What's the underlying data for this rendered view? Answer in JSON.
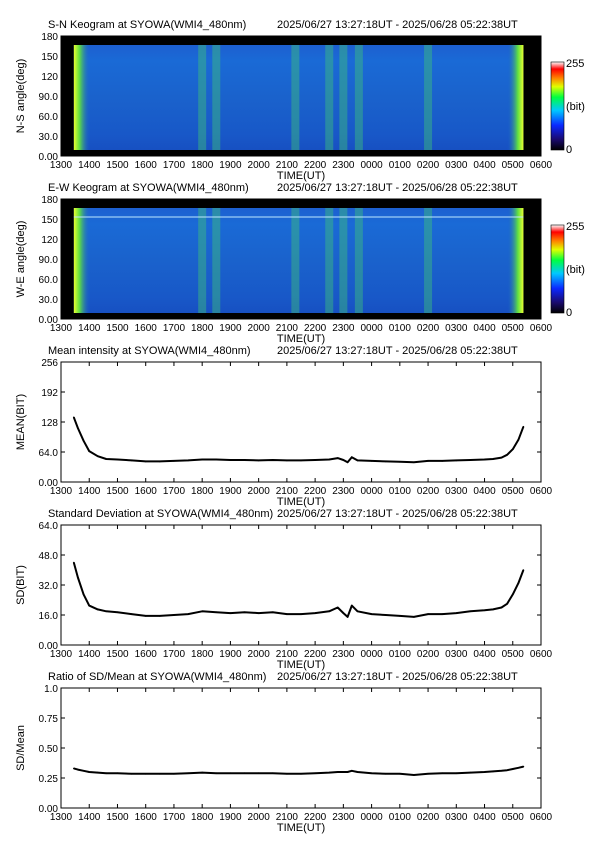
{
  "chart_data": [
    {
      "type": "heatmap",
      "title": "S-N Keogram at SYOWA(WMI4_480nm)",
      "time_range": "2025/06/27 13:27:18UT - 2025/06/28 05:22:38UT",
      "xlabel": "TIME(UT)",
      "ylabel": "N-S angle(deg)",
      "x_ticks": [
        "1300",
        "1400",
        "1500",
        "1600",
        "1700",
        "1800",
        "1900",
        "2000",
        "2100",
        "2200",
        "2300",
        "0000",
        "0100",
        "0200",
        "0300",
        "0400",
        "0500",
        "0600"
      ],
      "y_ticks": [
        "0.00",
        "30.0",
        "60.0",
        "90.0",
        "120",
        "150",
        "180"
      ],
      "ylim": [
        0,
        180
      ],
      "colorbar": {
        "max_label": "255",
        "unit_label": "(bit)",
        "min_label": "0",
        "range": [
          0,
          255
        ]
      },
      "bright_bands_ut": [
        "1800",
        "1830",
        "2120",
        "2230",
        "2300",
        "2330",
        "0200"
      ],
      "colors": {
        "low": "#0a1fa0",
        "mid": "#1f7fd8",
        "mid2": "#2fb7a0",
        "high": "#7fdc3c"
      }
    },
    {
      "type": "heatmap",
      "title": "E-W Keogram at SYOWA(WMI4_480nm)",
      "time_range": "2025/06/27 13:27:18UT - 2025/06/28 05:22:38UT",
      "xlabel": "TIME(UT)",
      "ylabel": "W-E angle(deg)",
      "x_ticks": [
        "1300",
        "1400",
        "1500",
        "1600",
        "1700",
        "1800",
        "1900",
        "2000",
        "2100",
        "2200",
        "2300",
        "0000",
        "0100",
        "0200",
        "0300",
        "0400",
        "0500",
        "0600"
      ],
      "y_ticks": [
        "0.00",
        "30.0",
        "60.0",
        "90.0",
        "120",
        "150",
        "180"
      ],
      "ylim": [
        0,
        180
      ],
      "colorbar": {
        "max_label": "255",
        "unit_label": "(bit)",
        "min_label": "0",
        "range": [
          0,
          255
        ]
      },
      "bright_bands_ut": [
        "1800",
        "1830",
        "2120",
        "2230",
        "2300",
        "2330",
        "0200"
      ]
    },
    {
      "type": "line",
      "title": "Mean intensity at SYOWA(WMI4_480nm)",
      "time_range": "2025/06/27 13:27:18UT - 2025/06/28 05:22:38UT",
      "xlabel": "TIME(UT)",
      "ylabel": "MEAN(BIT)",
      "x_ticks": [
        "1300",
        "1400",
        "1500",
        "1600",
        "1700",
        "1800",
        "1900",
        "2000",
        "2100",
        "2200",
        "2300",
        "0000",
        "0100",
        "0200",
        "0300",
        "0400",
        "0500",
        "0600"
      ],
      "y_ticks": [
        "0.00",
        "64.0",
        "128",
        "192",
        "256"
      ],
      "ylim": [
        0,
        256
      ],
      "x_hours": [
        13.455,
        13.6,
        13.8,
        14.0,
        14.3,
        14.6,
        15.0,
        15.5,
        16.0,
        16.5,
        17.0,
        17.5,
        18.0,
        18.5,
        19.0,
        19.5,
        20.0,
        20.5,
        21.0,
        21.5,
        22.0,
        22.5,
        22.8,
        23.0,
        23.15,
        23.3,
        23.5,
        24.0,
        24.5,
        25.0,
        25.5,
        26.0,
        26.5,
        27.0,
        27.5,
        28.0,
        28.3,
        28.6,
        28.8,
        29.0,
        29.2,
        29.378
      ],
      "values": [
        138,
        115,
        88,
        66,
        55,
        49,
        48,
        46,
        44,
        44,
        45,
        46,
        48,
        48,
        47,
        47,
        46,
        47,
        46,
        46,
        47,
        48,
        51,
        47,
        42,
        53,
        46,
        45,
        44,
        43,
        42,
        45,
        45,
        46,
        47,
        48,
        49,
        52,
        58,
        70,
        90,
        118
      ]
    },
    {
      "type": "line",
      "title": "Standard Deviation at SYOWA(WMI4_480nm)",
      "time_range": "2025/06/27 13:27:18UT - 2025/06/28 05:22:38UT",
      "xlabel": "TIME(UT)",
      "ylabel": "SD(BIT)",
      "x_ticks": [
        "1300",
        "1400",
        "1500",
        "1600",
        "1700",
        "1800",
        "1900",
        "2000",
        "2100",
        "2200",
        "2300",
        "0000",
        "0100",
        "0200",
        "0300",
        "0400",
        "0500",
        "0600"
      ],
      "y_ticks": [
        "0.00",
        "16.0",
        "32.0",
        "48.0",
        "64.0"
      ],
      "ylim": [
        0,
        64
      ],
      "x_hours": [
        13.455,
        13.6,
        13.8,
        14.0,
        14.3,
        14.6,
        15.0,
        15.5,
        16.0,
        16.5,
        17.0,
        17.5,
        18.0,
        18.5,
        19.0,
        19.5,
        20.0,
        20.5,
        21.0,
        21.5,
        22.0,
        22.5,
        22.8,
        23.0,
        23.15,
        23.3,
        23.5,
        24.0,
        24.5,
        25.0,
        25.5,
        26.0,
        26.5,
        27.0,
        27.5,
        28.0,
        28.3,
        28.6,
        28.8,
        29.0,
        29.2,
        29.378
      ],
      "values": [
        44,
        36,
        27,
        21,
        19,
        18,
        17.5,
        16.5,
        15.5,
        15.5,
        16,
        16.5,
        18,
        17.5,
        17,
        17.5,
        17,
        17.5,
        16.5,
        16.5,
        17,
        18,
        20,
        17,
        15,
        21,
        18,
        16.5,
        16,
        15.5,
        15,
        16.5,
        16.5,
        17,
        18,
        18.5,
        19,
        20,
        22,
        27,
        33,
        40
      ]
    },
    {
      "type": "line",
      "title": "Ratio of SD/Mean at SYOWA(WMI4_480nm)",
      "time_range": "2025/06/27 13:27:18UT - 2025/06/28 05:22:38UT",
      "xlabel": "TIME(UT)",
      "ylabel": "SD/Mean",
      "x_ticks": [
        "1300",
        "1400",
        "1500",
        "1600",
        "1700",
        "1800",
        "1900",
        "2000",
        "2100",
        "2200",
        "2300",
        "0000",
        "0100",
        "0200",
        "0300",
        "0400",
        "0500",
        "0600"
      ],
      "y_ticks": [
        "0.00",
        "0.25",
        "0.50",
        "0.75",
        "1.0"
      ],
      "ylim": [
        0,
        1.0
      ],
      "x_hours": [
        13.455,
        13.6,
        13.8,
        14.0,
        14.3,
        14.6,
        15.0,
        15.5,
        16.0,
        16.5,
        17.0,
        17.5,
        18.0,
        18.5,
        19.0,
        19.5,
        20.0,
        20.5,
        21.0,
        21.5,
        22.0,
        22.5,
        22.8,
        23.0,
        23.15,
        23.3,
        23.5,
        24.0,
        24.5,
        25.0,
        25.5,
        26.0,
        26.5,
        27.0,
        27.5,
        28.0,
        28.3,
        28.6,
        28.8,
        29.0,
        29.2,
        29.378
      ],
      "values": [
        0.33,
        0.32,
        0.31,
        0.3,
        0.295,
        0.29,
        0.29,
        0.285,
        0.285,
        0.285,
        0.285,
        0.29,
        0.295,
        0.29,
        0.29,
        0.29,
        0.29,
        0.29,
        0.285,
        0.285,
        0.29,
        0.295,
        0.3,
        0.3,
        0.3,
        0.31,
        0.3,
        0.29,
        0.285,
        0.285,
        0.275,
        0.285,
        0.29,
        0.29,
        0.295,
        0.3,
        0.305,
        0.31,
        0.315,
        0.325,
        0.335,
        0.345
      ]
    }
  ]
}
